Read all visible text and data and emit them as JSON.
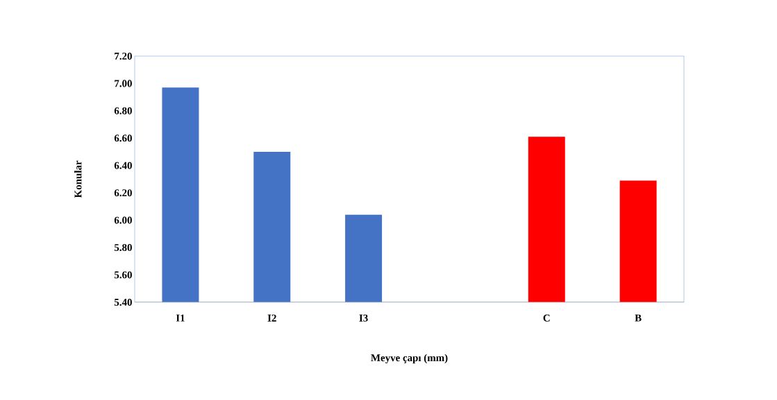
{
  "chart_data": {
    "type": "bar",
    "xlabel": "Meyve çapı (mm)",
    "ylabel": "Konular",
    "categories": [
      "I1",
      "I2",
      "I3",
      null,
      "C",
      "B"
    ],
    "values": [
      6.97,
      6.5,
      6.04,
      null,
      6.61,
      6.29
    ],
    "colors": [
      "#4472c4",
      "#4472c4",
      "#4472c4",
      null,
      "#ff0000",
      "#ff0000"
    ],
    "ylim": [
      5.4,
      7.2
    ],
    "yticks": [
      {
        "value": 5.4,
        "label": "5.40"
      },
      {
        "value": 5.6,
        "label": "5.60"
      },
      {
        "value": 5.8,
        "label": "5.80"
      },
      {
        "value": 6.0,
        "label": "6.00"
      },
      {
        "value": 6.2,
        "label": "6.20"
      },
      {
        "value": 6.4,
        "label": "6.40"
      },
      {
        "value": 6.6,
        "label": "6.60"
      },
      {
        "value": 6.8,
        "label": "6.80"
      },
      {
        "value": 7.0,
        "label": "7.00"
      },
      {
        "value": 7.2,
        "label": "7.20"
      }
    ],
    "grid": false
  }
}
